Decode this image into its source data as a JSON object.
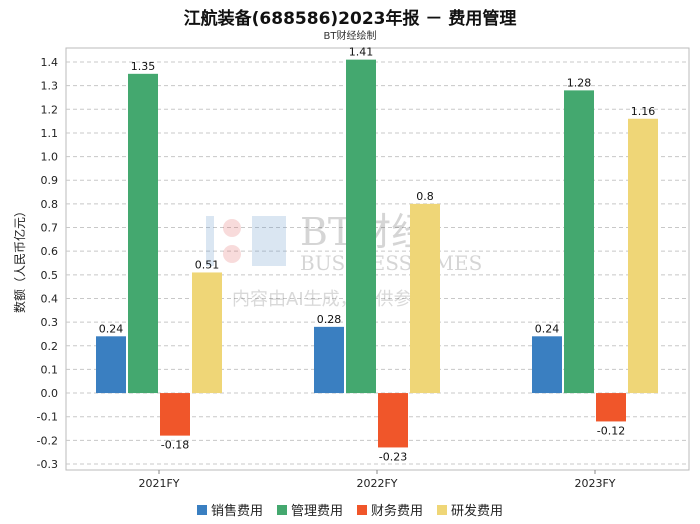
{
  "chart_data": {
    "type": "bar",
    "title": "江航装备(688586)2023年报 － 费用管理",
    "subtitle": "BT财经绘制",
    "ylabel": "数额（人民币亿元）",
    "categories": [
      "2021FY",
      "2022FY",
      "2023FY"
    ],
    "series": [
      {
        "name": "销售费用",
        "color": "#3a7fc1",
        "values": [
          0.24,
          0.28,
          0.24
        ]
      },
      {
        "name": "管理费用",
        "color": "#44a86f",
        "values": [
          1.35,
          1.41,
          1.28
        ]
      },
      {
        "name": "财务费用",
        "color": "#f0562a",
        "values": [
          -0.18,
          -0.23,
          -0.12
        ]
      },
      {
        "name": "研发费用",
        "color": "#efd677",
        "values": [
          0.51,
          0.8,
          1.16
        ]
      }
    ],
    "ylim": [
      -0.3,
      1.4
    ],
    "yticks": [
      -0.3,
      -0.2,
      -0.1,
      0.0,
      0.1,
      0.2,
      0.3,
      0.4,
      0.5,
      0.6,
      0.7,
      0.8,
      0.9,
      1.0,
      1.1,
      1.2,
      1.3,
      1.4
    ],
    "grid": true,
    "legend_position": "bottom",
    "watermark": {
      "logo": "BT财经",
      "sub": "BUSINESSTIMES",
      "note": "内容由AI生成，仅供参考"
    }
  }
}
